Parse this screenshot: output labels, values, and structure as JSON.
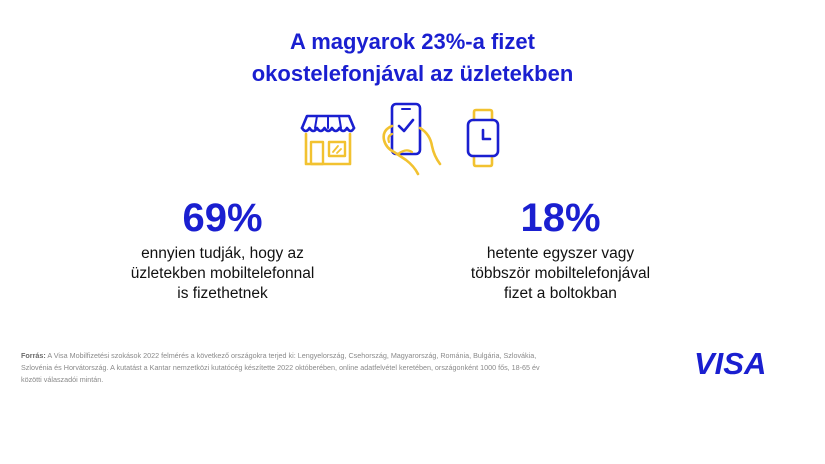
{
  "title": {
    "line1": "A magyarok 23%-a fizet",
    "line2": "okostelefonjával az üzletekben"
  },
  "icons": [
    "store-icon",
    "phone-hand-icon",
    "smartwatch-icon"
  ],
  "colors": {
    "accent": "#1a1fd0",
    "secondary": "#f2c230"
  },
  "stats": [
    {
      "value": "69%",
      "lines": [
        "ennyien tudják, hogy az",
        "üzletekben mobiltelefonnal",
        "is fizethetnek"
      ]
    },
    {
      "value": "18%",
      "lines": [
        "hetente egyszer vagy",
        "többször mobiltelefonjával",
        "fizet a boltokban"
      ]
    }
  ],
  "source": {
    "label": "Forrás:",
    "text": "A Visa Mobilfizetési szokások 2022 felmérés a következő országokra terjed ki: Lengyelország, Csehország, Magyarország, Románia, Bulgária, Szlovákia, Szlovénia és Horvátország. A kutatást a Kantar nemzetközi kutatócég készítette 2022 októberében, online adatfelvétel keretében, országonként 1000 fős, 18-65 év közötti válaszadói mintán."
  },
  "logo": "VISA"
}
